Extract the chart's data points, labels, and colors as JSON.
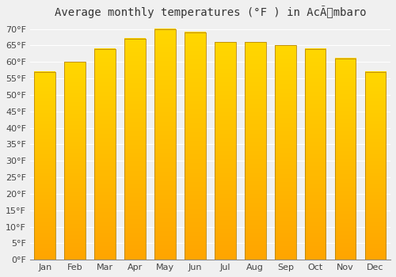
{
  "months": [
    "Jan",
    "Feb",
    "Mar",
    "Apr",
    "May",
    "Jun",
    "Jul",
    "Aug",
    "Sep",
    "Oct",
    "Nov",
    "Dec"
  ],
  "values": [
    57,
    60,
    64,
    67,
    70,
    69,
    66,
    66,
    65,
    64,
    61,
    57
  ],
  "bar_color_bottom": "#FFA500",
  "bar_color_top": "#FFD700",
  "bar_edge_color": "#B8860B",
  "title": "Average monthly temperatures (°F ) in AcÃmbaro",
  "ylim": [
    0,
    72
  ],
  "yticks": [
    0,
    5,
    10,
    15,
    20,
    25,
    30,
    35,
    40,
    45,
    50,
    55,
    60,
    65,
    70
  ],
  "background_color": "#f0f0f0",
  "grid_color": "#ffffff",
  "title_fontsize": 10,
  "tick_fontsize": 8,
  "bar_width": 0.7
}
